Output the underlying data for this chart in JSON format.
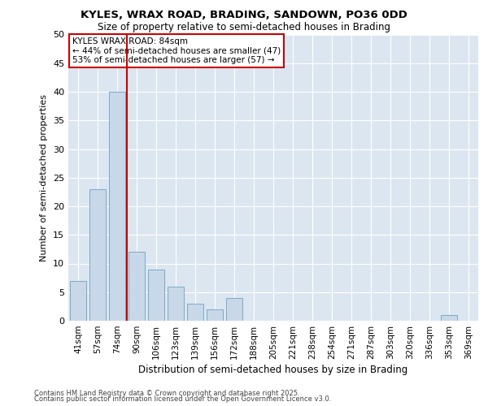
{
  "title1": "KYLES, WRAX ROAD, BRADING, SANDOWN, PO36 0DD",
  "title2": "Size of property relative to semi-detached houses in Brading",
  "xlabel": "Distribution of semi-detached houses by size in Brading",
  "ylabel": "Number of semi-detached properties",
  "categories": [
    "41sqm",
    "57sqm",
    "74sqm",
    "90sqm",
    "106sqm",
    "123sqm",
    "139sqm",
    "156sqm",
    "172sqm",
    "188sqm",
    "205sqm",
    "221sqm",
    "238sqm",
    "254sqm",
    "271sqm",
    "287sqm",
    "303sqm",
    "320sqm",
    "336sqm",
    "353sqm",
    "369sqm"
  ],
  "values": [
    7,
    23,
    40,
    12,
    9,
    6,
    3,
    2,
    4,
    0,
    0,
    0,
    0,
    0,
    0,
    0,
    0,
    0,
    0,
    1,
    0
  ],
  "bar_color": "#c8d8e8",
  "bar_edge_color": "#7aaac8",
  "vline_x": 2.5,
  "vline_color": "#cc0000",
  "annotation_title": "KYLES WRAX ROAD: 84sqm",
  "annotation_line2": "← 44% of semi-detached houses are smaller (47)",
  "annotation_line3": "53% of semi-detached houses are larger (57) →",
  "annotation_box_color": "#cc0000",
  "ylim": [
    0,
    50
  ],
  "yticks": [
    0,
    5,
    10,
    15,
    20,
    25,
    30,
    35,
    40,
    45,
    50
  ],
  "background_color": "#dce6f0",
  "grid_color": "#ffffff",
  "footer1": "Contains HM Land Registry data © Crown copyright and database right 2025.",
  "footer2": "Contains public sector information licensed under the Open Government Licence v3.0."
}
